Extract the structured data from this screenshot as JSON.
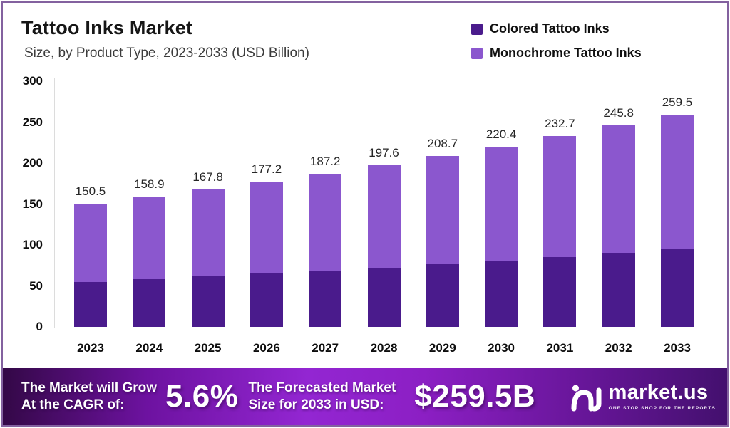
{
  "header": {
    "title": "Tattoo Inks Market",
    "subtitle": "Size, by Product Type, 2023-2033 (USD Billion)"
  },
  "legend": [
    {
      "label": "Colored Tattoo Inks",
      "color": "#4a1b8c"
    },
    {
      "label": "Monochrome Tattoo Inks",
      "color": "#8b57ce"
    }
  ],
  "chart_data": {
    "type": "bar",
    "stacked": true,
    "title": "Tattoo Inks Market Size, by Product Type, 2023-2033 (USD Billion)",
    "categories": [
      "2023",
      "2024",
      "2025",
      "2026",
      "2027",
      "2028",
      "2029",
      "2030",
      "2031",
      "2032",
      "2033"
    ],
    "series": [
      {
        "name": "Colored Tattoo Inks",
        "color": "#4a1b8c",
        "values": [
          55.2,
          58.3,
          61.6,
          65.0,
          68.7,
          72.5,
          76.6,
          80.9,
          85.4,
          90.2,
          95.2
        ],
        "estimated_from_pixels": true
      },
      {
        "name": "Monochrome Tattoo Inks",
        "color": "#8b57ce",
        "values": [
          95.3,
          100.6,
          106.2,
          112.2,
          118.5,
          125.1,
          132.1,
          139.5,
          147.3,
          155.6,
          164.3
        ],
        "estimated_from_pixels": true
      }
    ],
    "totals": [
      150.5,
      158.9,
      167.8,
      177.2,
      187.2,
      197.6,
      208.7,
      220.4,
      232.7,
      245.8,
      259.5
    ],
    "xlabel": "",
    "ylabel": "",
    "ylim": [
      0,
      300
    ],
    "yticks": [
      0,
      50,
      100,
      150,
      200,
      250,
      300
    ],
    "grid": false,
    "legend_position": "top-right"
  },
  "banner": {
    "cagr_label_line1": "The Market will Grow",
    "cagr_label_line2": "At the CAGR of:",
    "cagr_value": "5.6%",
    "forecast_label_line1": "The Forecasted Market",
    "forecast_label_line2": "Size for 2033 in USD:",
    "forecast_value": "$259.5B",
    "brand": "market.us",
    "brand_tagline": "ONE STOP SHOP FOR THE REPORTS"
  },
  "colors": {
    "frame_border": "#83619f",
    "banner_gradient_left": "#330846",
    "banner_gradient_center": "#9326d2",
    "banner_gradient_right": "#43106e",
    "axis_line": "#d2d2d2",
    "title_text": "#161616",
    "subtitle_text": "#3c3c3c"
  }
}
